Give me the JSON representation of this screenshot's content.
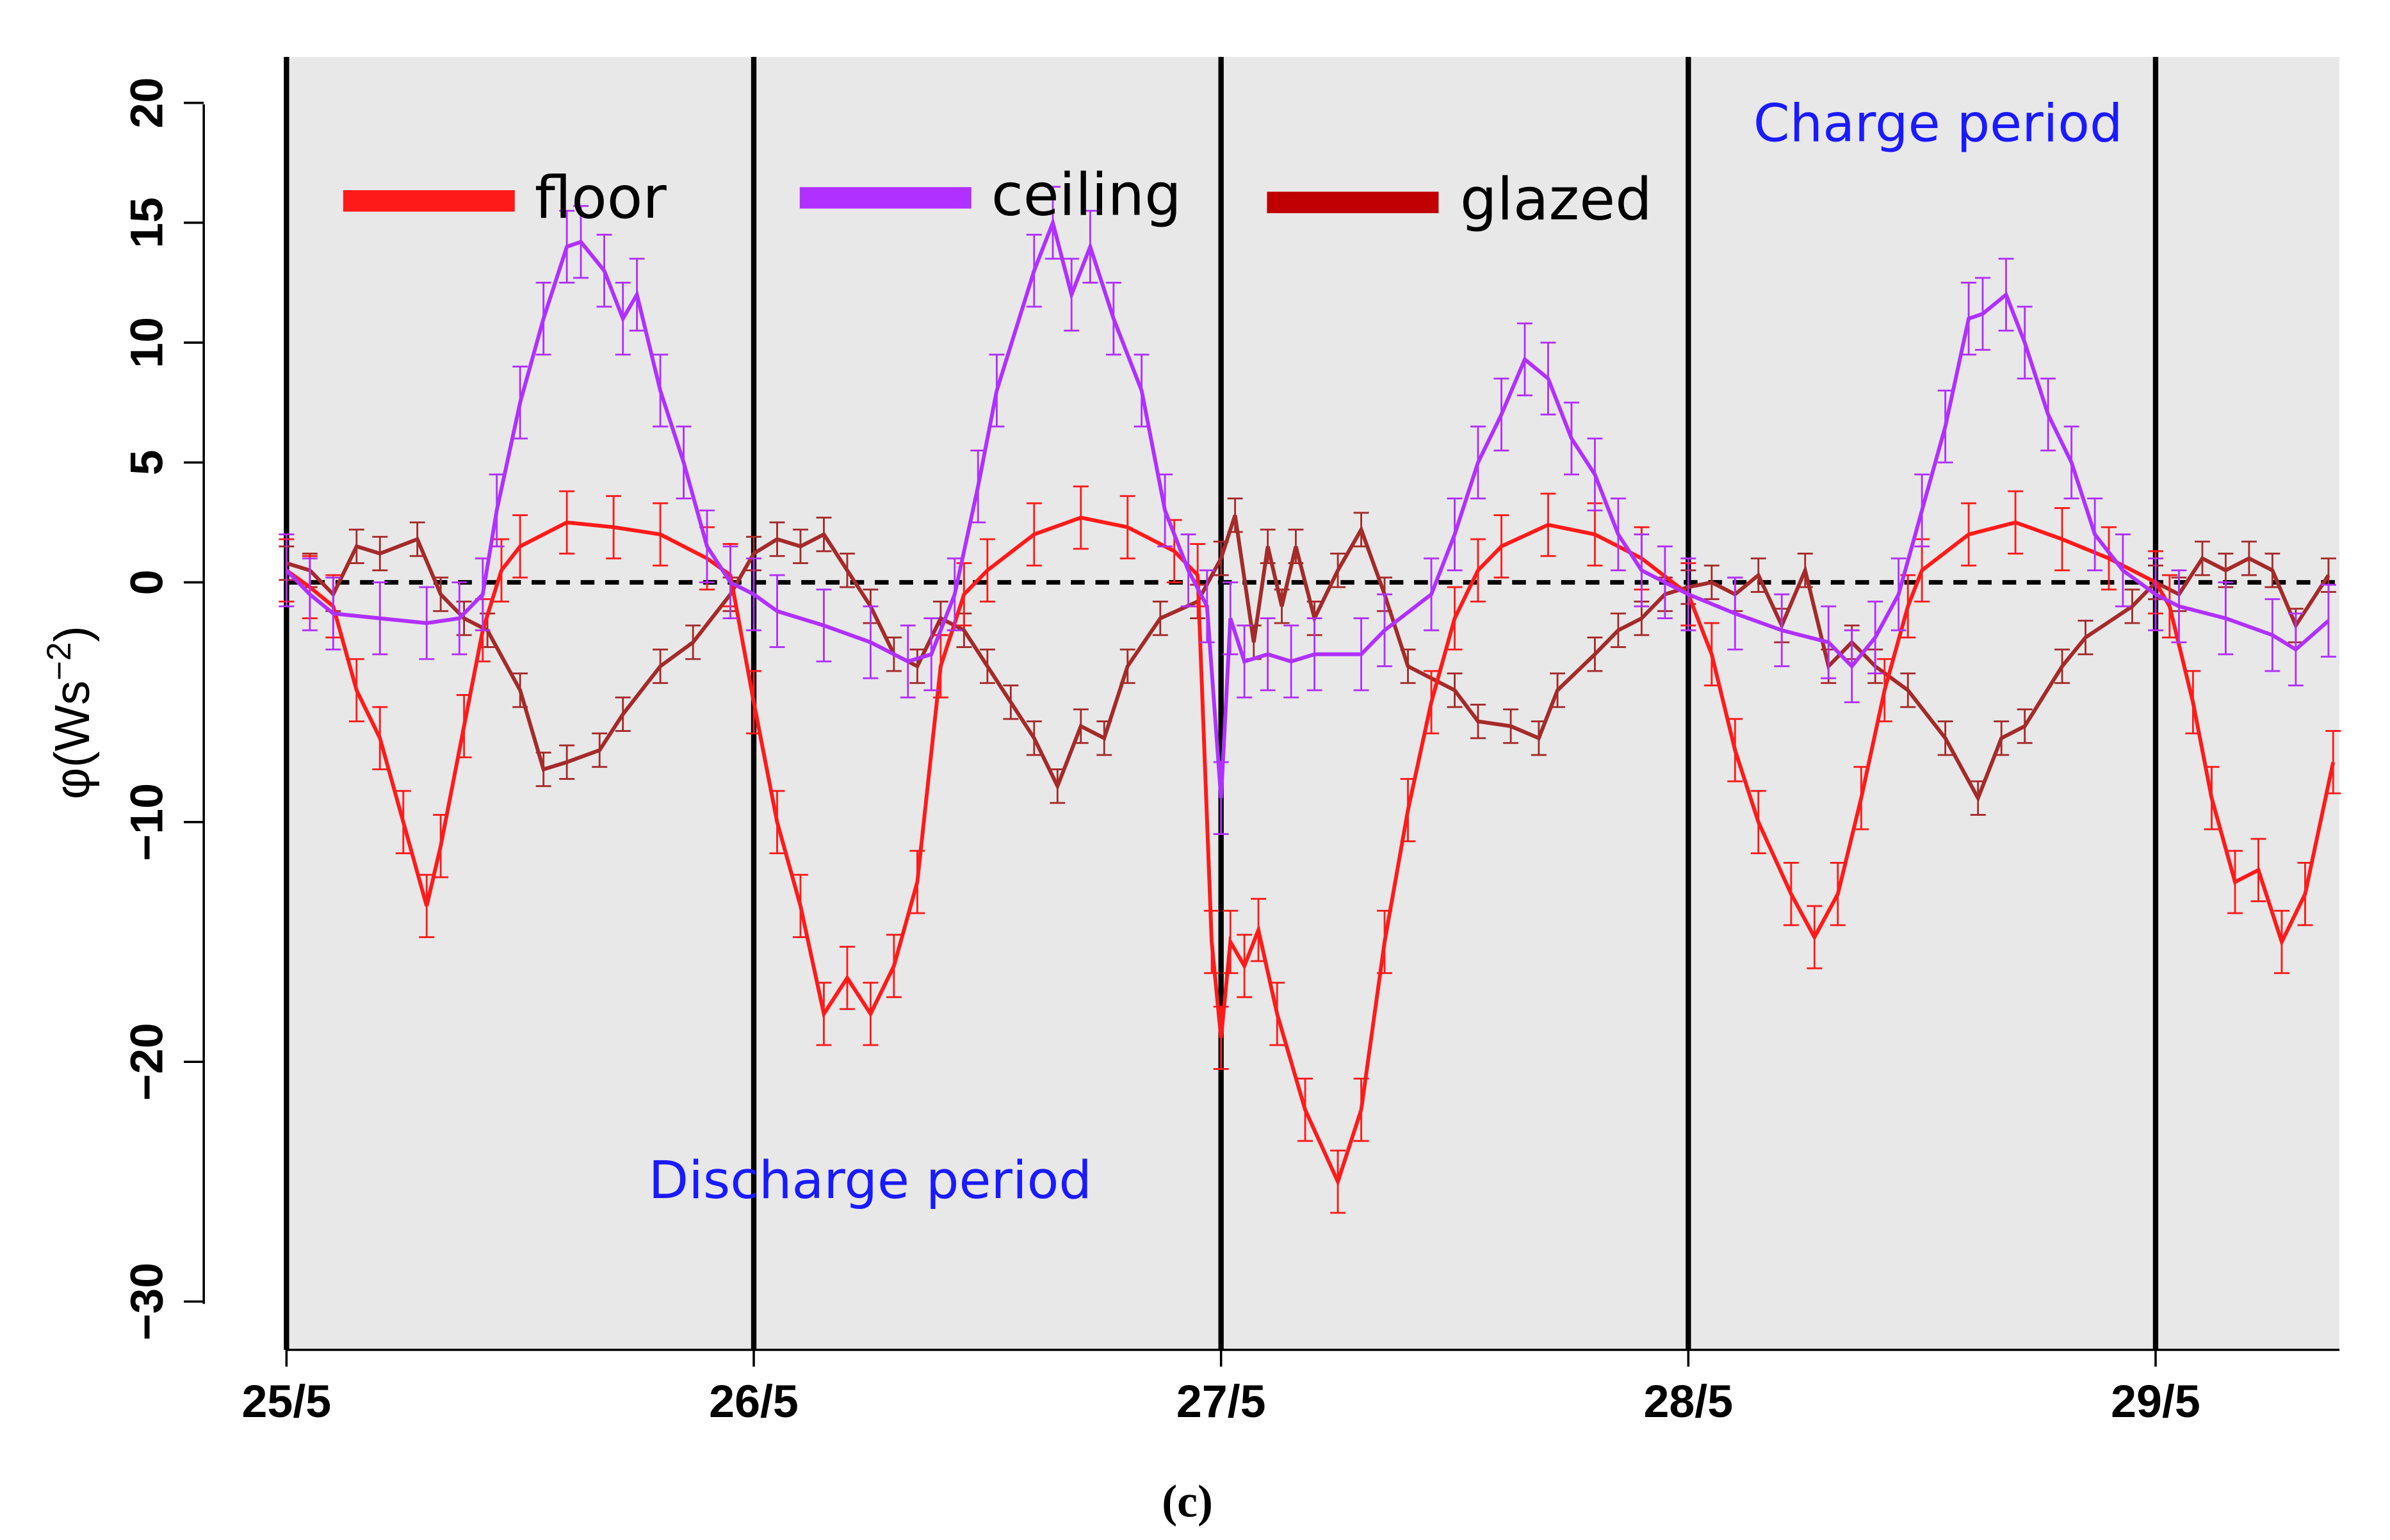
{
  "chart_data": {
    "type": "line",
    "title": "",
    "caption": "(c)",
    "xlabel": "",
    "ylabel": "φ(Ws",
    "ylabel_sup": "−2",
    "ylabel_close": ")",
    "xlim": [
      0,
      4.4
    ],
    "ylim": [
      -30,
      20
    ],
    "x_ticks": [
      {
        "value": 0,
        "label": "25/5"
      },
      {
        "value": 1,
        "label": "26/5"
      },
      {
        "value": 2,
        "label": "27/5"
      },
      {
        "value": 3,
        "label": "28/5"
      },
      {
        "value": 4,
        "label": "29/5"
      }
    ],
    "y_ticks": [
      {
        "value": 20,
        "label": "20"
      },
      {
        "value": 15,
        "label": "15"
      },
      {
        "value": 10,
        "label": "10"
      },
      {
        "value": 5,
        "label": "5"
      },
      {
        "value": 0,
        "label": "0"
      },
      {
        "value": -10,
        "label": "−10"
      },
      {
        "value": -20,
        "label": "−20"
      },
      {
        "value": -30,
        "label": "−30"
      }
    ],
    "day_lines": [
      0,
      1,
      2,
      3,
      4
    ],
    "zero_line": 0,
    "annotations": {
      "charge": "Charge period",
      "discharge": "Discharge period"
    },
    "legend_placement": "top (inline)",
    "background": "#e8e8e8",
    "series": [
      {
        "name": "floor",
        "color": "#ff1a1a",
        "legend_color": "#ff1a1a",
        "error": 1.3,
        "x": [
          0,
          0.05,
          0.1,
          0.15,
          0.2,
          0.25,
          0.3,
          0.33,
          0.38,
          0.42,
          0.46,
          0.5,
          0.6,
          0.7,
          0.8,
          0.9,
          0.95,
          1.0,
          1.05,
          1.1,
          1.15,
          1.2,
          1.25,
          1.3,
          1.35,
          1.4,
          1.45,
          1.5,
          1.6,
          1.7,
          1.8,
          1.9,
          1.95,
          1.98,
          2.0,
          2.02,
          2.05,
          2.08,
          2.12,
          2.18,
          2.25,
          2.3,
          2.35,
          2.4,
          2.45,
          2.5,
          2.55,
          2.6,
          2.7,
          2.8,
          2.9,
          3.0,
          3.05,
          3.1,
          3.15,
          3.22,
          3.27,
          3.32,
          3.37,
          3.42,
          3.47,
          3.5,
          3.6,
          3.7,
          3.8,
          3.9,
          4.0,
          4.03,
          4.08,
          4.12,
          4.17,
          4.22,
          4.27,
          4.32,
          4.38
        ],
        "y": [
          0.5,
          -0.2,
          -1,
          -4.5,
          -6.5,
          -10,
          -13.5,
          -11,
          -6,
          -2,
          0.5,
          1.5,
          2.5,
          2.3,
          2,
          1,
          0.3,
          -5,
          -10,
          -13.5,
          -18,
          -16.5,
          -18,
          -16,
          -12.5,
          -3.5,
          -0.5,
          0.5,
          2,
          2.7,
          2.3,
          1.3,
          0.3,
          -15,
          -19,
          -15,
          -16,
          -14.5,
          -18,
          -22,
          -25,
          -22,
          -15,
          -9.5,
          -5,
          -1.5,
          0.5,
          1.5,
          2.4,
          2,
          1,
          -0.5,
          -3,
          -7,
          -10,
          -13,
          -14.8,
          -13,
          -9,
          -4.5,
          -1,
          0.5,
          2,
          2.5,
          1.8,
          1,
          0,
          -1,
          -5,
          -9,
          -12.5,
          -12,
          -15,
          -13,
          -7.5
        ]
      },
      {
        "name": "ceiling",
        "color": "#b030ff",
        "legend_color": "#b030ff",
        "error": 1.5,
        "x": [
          0,
          0.05,
          0.1,
          0.2,
          0.3,
          0.37,
          0.42,
          0.45,
          0.5,
          0.55,
          0.6,
          0.63,
          0.68,
          0.72,
          0.75,
          0.8,
          0.85,
          0.9,
          0.95,
          1.0,
          1.05,
          1.15,
          1.25,
          1.33,
          1.38,
          1.43,
          1.48,
          1.52,
          1.6,
          1.64,
          1.68,
          1.72,
          1.77,
          1.83,
          1.88,
          1.93,
          1.97,
          2.0,
          2.02,
          2.05,
          2.1,
          2.15,
          2.2,
          2.3,
          2.35,
          2.45,
          2.5,
          2.55,
          2.6,
          2.65,
          2.7,
          2.75,
          2.8,
          2.85,
          2.9,
          2.95,
          3.0,
          3.1,
          3.2,
          3.3,
          3.35,
          3.4,
          3.45,
          3.5,
          3.55,
          3.6,
          3.63,
          3.68,
          3.72,
          3.77,
          3.82,
          3.87,
          3.93,
          4.0,
          4.05,
          4.15,
          4.25,
          4.3,
          4.37
        ],
        "y": [
          0.5,
          -0.5,
          -1.3,
          -1.5,
          -1.7,
          -1.5,
          -0.5,
          3,
          7.5,
          11,
          14,
          14.2,
          13,
          11,
          12,
          8,
          5,
          1.5,
          0,
          -0.5,
          -1.2,
          -1.8,
          -2.5,
          -3.3,
          -3,
          -0.5,
          4,
          8,
          13,
          15,
          12,
          14,
          11,
          8,
          3,
          0.5,
          -1,
          -9,
          -1.5,
          -3.3,
          -3,
          -3.3,
          -3,
          -3,
          -2,
          -0.5,
          2,
          5,
          7,
          9.3,
          8.5,
          6,
          4.5,
          2,
          0.5,
          0,
          -0.5,
          -1.3,
          -2,
          -2.5,
          -3.5,
          -2.3,
          -0.5,
          3,
          6.5,
          11,
          11.2,
          12,
          10,
          7,
          5,
          2,
          0.5,
          -0.5,
          -1,
          -1.5,
          -2.2,
          -2.8,
          -1.6
        ]
      },
      {
        "name": "glazed",
        "color": "#a52a2a",
        "legend_color": "#c00000",
        "error": 0.7,
        "x": [
          0,
          0.05,
          0.1,
          0.15,
          0.2,
          0.28,
          0.33,
          0.38,
          0.43,
          0.5,
          0.55,
          0.6,
          0.67,
          0.72,
          0.8,
          0.87,
          0.95,
          1.0,
          1.05,
          1.1,
          1.15,
          1.2,
          1.25,
          1.3,
          1.35,
          1.4,
          1.45,
          1.5,
          1.55,
          1.6,
          1.65,
          1.7,
          1.75,
          1.8,
          1.87,
          1.95,
          2.0,
          2.03,
          2.07,
          2.1,
          2.13,
          2.16,
          2.2,
          2.25,
          2.3,
          2.35,
          2.4,
          2.5,
          2.55,
          2.62,
          2.68,
          2.72,
          2.8,
          2.85,
          2.9,
          2.95,
          3.0,
          3.05,
          3.1,
          3.15,
          3.2,
          3.25,
          3.3,
          3.35,
          3.4,
          3.47,
          3.55,
          3.62,
          3.67,
          3.72,
          3.8,
          3.85,
          3.95,
          4.0,
          4.05,
          4.1,
          4.15,
          4.2,
          4.25,
          4.3,
          4.37
        ],
        "y": [
          0.8,
          0.5,
          -0.5,
          1.5,
          1.2,
          1.8,
          -0.5,
          -1.5,
          -2,
          -4.5,
          -7.8,
          -7.5,
          -7,
          -5.5,
          -3.5,
          -2.5,
          -0.5,
          1.2,
          1.8,
          1.5,
          2,
          0.5,
          -1,
          -3,
          -3.5,
          -1.5,
          -2,
          -3.5,
          -5,
          -6.5,
          -8.5,
          -6,
          -6.5,
          -3.5,
          -1.5,
          -0.8,
          1,
          2.8,
          -2.5,
          1.5,
          -1,
          1.5,
          -1.5,
          0.5,
          2.2,
          -0.5,
          -3.5,
          -4.5,
          -5.8,
          -6,
          -6.5,
          -4.5,
          -3,
          -2,
          -1.5,
          -0.5,
          -0.2,
          0,
          -0.5,
          0.3,
          -1.8,
          0.5,
          -3.5,
          -2.5,
          -3.5,
          -4.5,
          -6.5,
          -9,
          -6.5,
          -6,
          -3.5,
          -2.3,
          -1,
          0,
          -0.5,
          1,
          0.5,
          1,
          0.5,
          -1.8,
          0.3
        ]
      }
    ]
  }
}
